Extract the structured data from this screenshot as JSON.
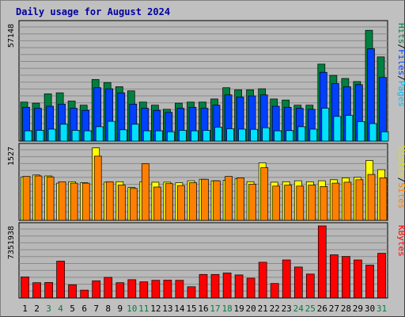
{
  "chart_data": {
    "type": "bar",
    "title": "Daily usage for August 2024",
    "days": [
      "1",
      "2",
      "3",
      "4",
      "5",
      "6",
      "7",
      "8",
      "9",
      "10",
      "11",
      "12",
      "13",
      "14",
      "15",
      "16",
      "17",
      "18",
      "19",
      "20",
      "21",
      "22",
      "23",
      "24",
      "25",
      "26",
      "27",
      "28",
      "29",
      "30",
      "31"
    ],
    "weekend_days": [
      3,
      4,
      10,
      11,
      17,
      18,
      24,
      25,
      31
    ],
    "colors": {
      "hits": "#008040",
      "files": "#0040ff",
      "pages": "#00e0ff",
      "visits": "#ffff00",
      "sites": "#ff8000",
      "kbytes": "#ff0000",
      "weekday_label": "#000000",
      "weekend_label": "#008040"
    },
    "panels": [
      {
        "key": "top",
        "ymax_label": "57148",
        "ymax": 57148,
        "right_labels": [
          {
            "text": "Pages",
            "color": "#00c0ff"
          },
          {
            "text": "/",
            "color": "#000000"
          },
          {
            "text": "Files",
            "color": "#0040ff"
          },
          {
            "text": "/",
            "color": "#000000"
          },
          {
            "text": "Hits",
            "color": "#008040"
          }
        ],
        "series": [
          {
            "name": "Hits",
            "color": "#008040",
            "values": [
              19000,
              18500,
              23000,
              23500,
              19500,
              17500,
              30000,
              28500,
              26500,
              24500,
              19000,
              17500,
              15500,
              18500,
              19000,
              19000,
              20500,
              26000,
              25000,
              25000,
              25500,
              20500,
              20000,
              17500,
              17500,
              37500,
              32000,
              30500,
              29000,
              54000,
              41000
            ]
          },
          {
            "name": "Files",
            "color": "#0040ff",
            "values": [
              16500,
              16000,
              17000,
              18000,
              16000,
              15000,
              26000,
              25500,
              23500,
              18000,
              16000,
              15000,
              14000,
              16000,
              16500,
              16000,
              17500,
              22500,
              21500,
              22000,
              22500,
              17000,
              16500,
              16000,
              15500,
              33500,
              28000,
              26500,
              27500,
              45000,
              31000
            ]
          },
          {
            "name": "Pages",
            "color": "#00e0ff",
            "values": [
              5000,
              5200,
              5800,
              8200,
              5200,
              5000,
              7000,
              9600,
              5500,
              8200,
              5000,
              5000,
              4500,
              5200,
              5000,
              5200,
              6800,
              6000,
              5800,
              5700,
              6500,
              5000,
              5100,
              7000,
              5800,
              16000,
              12000,
              12500,
              9500,
              8500,
              4500
            ]
          }
        ]
      },
      {
        "key": "middle",
        "ymax_label": "1527",
        "ymax": 1527,
        "right_labels": [
          {
            "text": "Sites",
            "color": "#ff8000"
          },
          {
            "text": "/",
            "color": "#000000"
          },
          {
            "text": "Visits",
            "color": "#e0e000"
          }
        ],
        "series": [
          {
            "name": "Visits",
            "color": "#ffff00",
            "values": [
              900,
              940,
              920,
              770,
              800,
              780,
              1500,
              790,
              800,
              680,
              800,
              790,
              790,
              780,
              820,
              850,
              820,
              830,
              860,
              800,
              1190,
              790,
              800,
              820,
              800,
              820,
              840,
              880,
              890,
              1240,
              1050
            ]
          },
          {
            "name": "Sites",
            "color": "#ff8000",
            "values": [
              910,
              920,
              900,
              800,
              770,
              770,
              1330,
              800,
              730,
              660,
              1170,
              690,
              760,
              720,
              780,
              850,
              820,
              910,
              880,
              750,
              1090,
              710,
              730,
              710,
              730,
              700,
              770,
              790,
              840,
              950,
              880
            ]
          }
        ]
      },
      {
        "key": "bottom",
        "ymax_label": "7351938",
        "ymax": 7351938,
        "right_labels": [
          {
            "text": "KBytes",
            "color": "#ff0000"
          }
        ],
        "series": [
          {
            "name": "KBytes",
            "color": "#ff0000",
            "values": [
              2150000,
              1560000,
              1580000,
              3760000,
              1350000,
              800000,
              1750000,
              2100000,
              1560000,
              1870000,
              1650000,
              1800000,
              1820000,
              1800000,
              1150000,
              2400000,
              2400000,
              2550000,
              2350000,
              2020000,
              3640000,
              1480000,
              3880000,
              3160000,
              2440000,
              7351938,
              4400000,
              4230000,
              3880000,
              3350000,
              4560000
            ]
          }
        ]
      }
    ]
  }
}
